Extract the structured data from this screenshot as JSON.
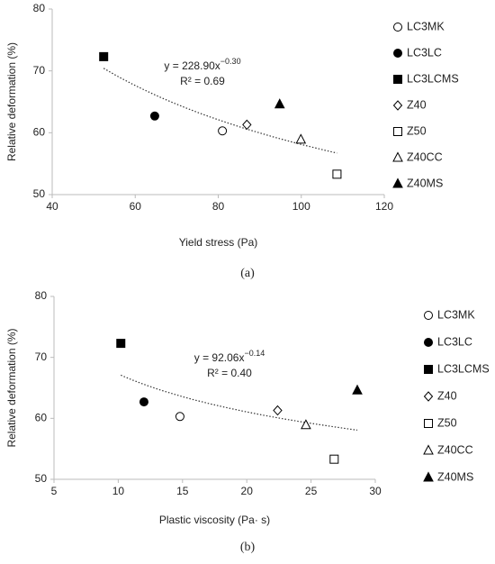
{
  "chart_data": [
    {
      "type": "scatter",
      "caption": "(a)",
      "xlabel": "Yield stress (Pa)",
      "ylabel": "Relative deformation (%)",
      "xlim": [
        40,
        120
      ],
      "xticks": [
        40,
        60,
        80,
        100,
        120
      ],
      "ylim": [
        50,
        80
      ],
      "yticks": [
        50,
        60,
        70,
        80
      ],
      "trendline": {
        "equation": "y = 228.90x",
        "exponent": "−0.30",
        "r2": "R² = 0.69"
      },
      "series": [
        {
          "name": "LC3MK",
          "marker": "circle",
          "filled": false,
          "color": "#000000",
          "x": [
            81.0
          ],
          "values": [
            60.3
          ]
        },
        {
          "name": "LC3LC",
          "marker": "circle",
          "filled": true,
          "color": "#000000",
          "x": [
            64.7
          ],
          "values": [
            62.7
          ]
        },
        {
          "name": "LC3LCMS",
          "marker": "square",
          "filled": true,
          "color": "#000000",
          "x": [
            52.4
          ],
          "values": [
            72.3
          ]
        },
        {
          "name": "Z40",
          "marker": "diamond",
          "filled": false,
          "color": "#000000",
          "x": [
            86.9
          ],
          "values": [
            61.3
          ]
        },
        {
          "name": "Z50",
          "marker": "square",
          "filled": false,
          "color": "#000000",
          "x": [
            108.6
          ],
          "values": [
            53.3
          ]
        },
        {
          "name": "Z40CC",
          "marker": "triangle",
          "filled": false,
          "color": "#000000",
          "x": [
            99.9
          ],
          "values": [
            58.9
          ]
        },
        {
          "name": "Z40MS",
          "marker": "triangle",
          "filled": true,
          "color": "#000000",
          "x": [
            94.8
          ],
          "values": [
            64.6
          ]
        }
      ]
    },
    {
      "type": "scatter",
      "caption": "(b)",
      "xlabel": "Plastic viscosity (Pa· s)",
      "ylabel": "Relative deformation (%)",
      "xlim": [
        5,
        30
      ],
      "xticks": [
        5,
        10,
        15,
        20,
        25,
        30
      ],
      "ylim": [
        50,
        80
      ],
      "yticks": [
        50,
        60,
        70,
        80
      ],
      "trendline": {
        "equation": "y = 92.06x",
        "exponent": "−0.14",
        "r2": "R² = 0.40"
      },
      "series": [
        {
          "name": "LC3MK",
          "marker": "circle",
          "filled": false,
          "color": "#000000",
          "x": [
            14.8
          ],
          "values": [
            60.3
          ]
        },
        {
          "name": "LC3LC",
          "marker": "circle",
          "filled": true,
          "color": "#000000",
          "x": [
            12.0
          ],
          "values": [
            62.7
          ]
        },
        {
          "name": "LC3LCMS",
          "marker": "square",
          "filled": true,
          "color": "#000000",
          "x": [
            10.2
          ],
          "values": [
            72.3
          ]
        },
        {
          "name": "Z40",
          "marker": "diamond",
          "filled": false,
          "color": "#000000",
          "x": [
            22.4
          ],
          "values": [
            61.3
          ]
        },
        {
          "name": "Z50",
          "marker": "square",
          "filled": false,
          "color": "#000000",
          "x": [
            26.8
          ],
          "values": [
            53.3
          ]
        },
        {
          "name": "Z40CC",
          "marker": "triangle",
          "filled": false,
          "color": "#000000",
          "x": [
            24.6
          ],
          "values": [
            58.9
          ]
        },
        {
          "name": "Z40MS",
          "marker": "triangle",
          "filled": true,
          "color": "#000000",
          "x": [
            28.6
          ],
          "values": [
            64.6
          ]
        }
      ]
    }
  ]
}
